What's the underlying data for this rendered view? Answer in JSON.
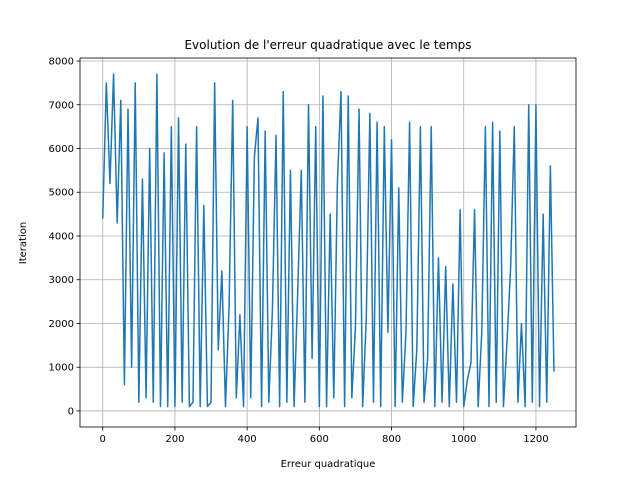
{
  "chart_data": {
    "type": "line",
    "title": "Evolution de l'erreur quadratique avec le temps",
    "x_label": "Erreur quadratique",
    "y_label": "Iteration",
    "x": [
      0,
      10,
      20,
      30,
      40,
      50,
      60,
      70,
      80,
      90,
      100,
      110,
      120,
      130,
      140,
      150,
      160,
      170,
      180,
      190,
      200,
      210,
      220,
      230,
      240,
      250,
      260,
      270,
      280,
      290,
      300,
      310,
      320,
      330,
      340,
      350,
      360,
      370,
      380,
      390,
      400,
      410,
      420,
      430,
      440,
      450,
      460,
      470,
      480,
      490,
      500,
      510,
      520,
      530,
      540,
      550,
      560,
      570,
      580,
      590,
      600,
      610,
      620,
      630,
      640,
      650,
      660,
      670,
      680,
      690,
      700,
      710,
      720,
      730,
      740,
      750,
      760,
      770,
      780,
      790,
      800,
      810,
      820,
      830,
      840,
      850,
      860,
      870,
      880,
      890,
      900,
      910,
      920,
      930,
      940,
      950,
      960,
      970,
      980,
      990,
      1000,
      1010,
      1020,
      1030,
      1040,
      1050,
      1060,
      1070,
      1080,
      1090,
      1100,
      1110,
      1120,
      1130,
      1140,
      1150,
      1160,
      1170,
      1180,
      1190,
      1200,
      1210,
      1220,
      1230,
      1240,
      1250
    ],
    "series": [
      {
        "color": "#1f77b4",
        "values": [
          4400,
          7500,
          5200,
          7700,
          4300,
          7100,
          600,
          6900,
          1000,
          7500,
          200,
          5300,
          300,
          6000,
          200,
          7700,
          100,
          5900,
          100,
          6500,
          100,
          6700,
          200,
          6100,
          100,
          200,
          6500,
          100,
          4700,
          100,
          200,
          7500,
          1400,
          3200,
          100,
          2400,
          7100,
          300,
          2200,
          100,
          6500,
          300,
          5800,
          6700,
          100,
          6400,
          200,
          2300,
          6300,
          100,
          7300,
          200,
          5500,
          100,
          2700,
          5500,
          200,
          7000,
          1200,
          6500,
          100,
          7200,
          100,
          4500,
          300,
          5200,
          7300,
          100,
          7200,
          300,
          1900,
          6900,
          100,
          2100,
          6800,
          200,
          6600,
          100,
          6500,
          1800,
          6200,
          100,
          5100,
          200,
          1800,
          6600,
          100,
          1400,
          6500,
          200,
          1200,
          6500,
          100,
          3500,
          200,
          3300,
          100,
          2900,
          200,
          4600,
          100,
          700,
          1100,
          4600,
          100,
          1800,
          6500,
          100,
          6600,
          200,
          6400,
          100,
          1600,
          3300,
          6500,
          200,
          2000,
          100,
          7000,
          200,
          7000,
          100,
          4500,
          200,
          5600,
          900
        ]
      }
    ],
    "xlim": [
      -63,
      1311
    ],
    "ylim": [
      -367,
      8069
    ],
    "xticks": [
      0,
      200,
      400,
      600,
      800,
      1000,
      1200
    ],
    "yticks": [
      0,
      1000,
      2000,
      3000,
      4000,
      5000,
      6000,
      7000,
      8000
    ],
    "grid": true
  }
}
